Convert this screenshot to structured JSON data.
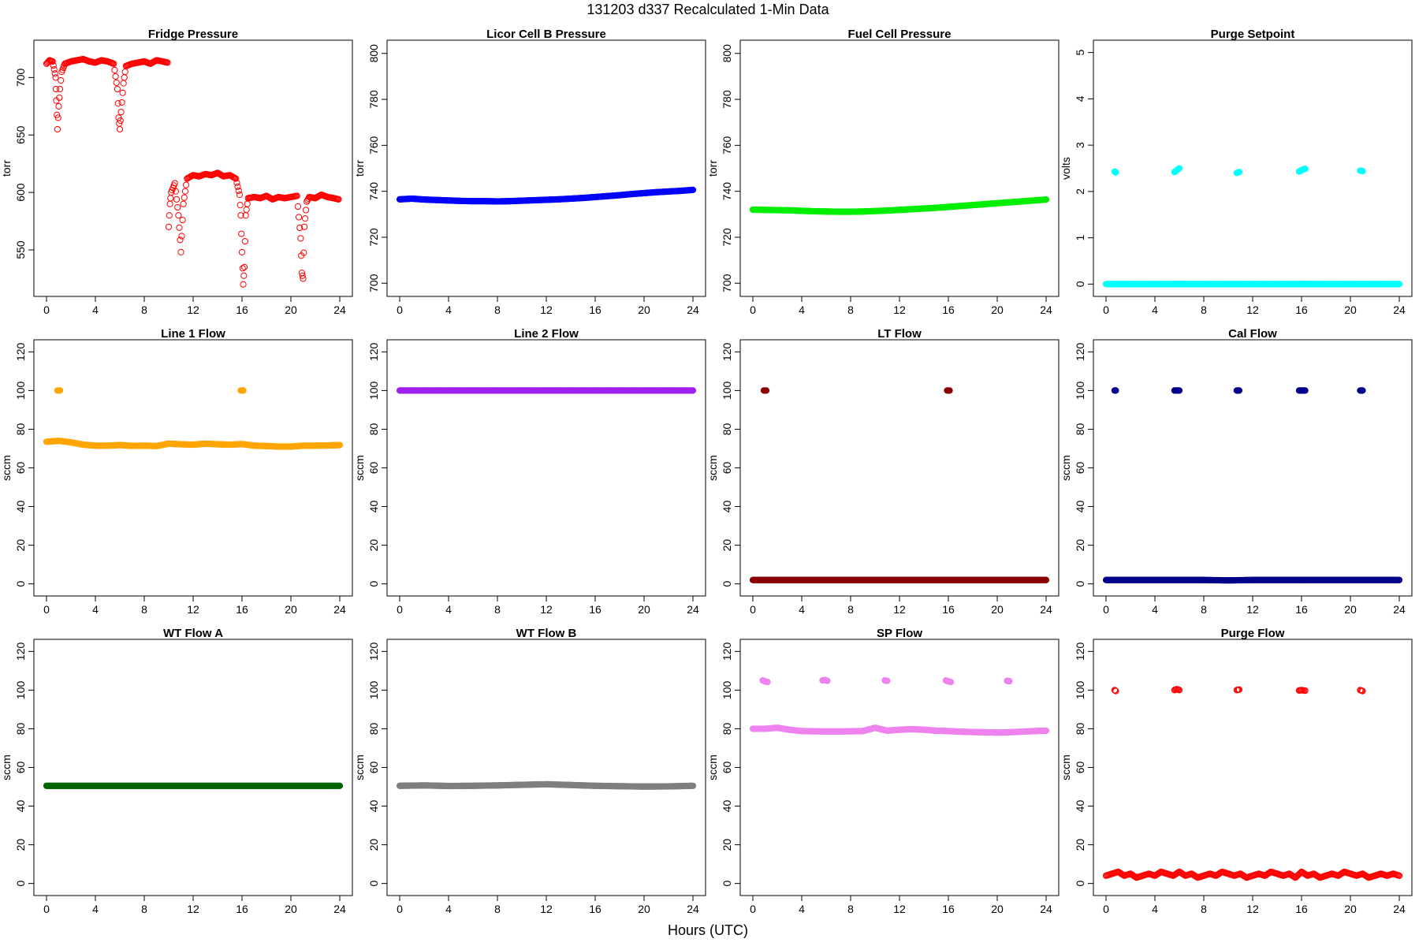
{
  "figure": {
    "title": "131203   d337   Recalculated 1-Min Data",
    "xlabel": "Hours (UTC)"
  },
  "chart_data": [
    {
      "type": "scatter",
      "title": "Fridge Pressure",
      "ylabel": "torr",
      "color": "#ff0000",
      "marker": "open",
      "xlim": [
        0,
        24
      ],
      "ylim": [
        515,
        727
      ],
      "xticks": [
        0,
        4,
        8,
        12,
        16,
        20,
        24
      ],
      "yticks": [
        550,
        600,
        650,
        700
      ],
      "series": [
        {
          "x": [
            0.0,
            0.25,
            0.5,
            0.75,
            0.8,
            0.9,
            1.0,
            1.1,
            1.25,
            1.5,
            2.0,
            2.5,
            3.0,
            3.5,
            4.0,
            4.5,
            5.0,
            5.5,
            5.8,
            5.9,
            6.0,
            6.1,
            6.3,
            6.5,
            7.0,
            7.5,
            8.0,
            8.5,
            9.0,
            9.5,
            9.9
          ],
          "y": [
            712,
            715,
            714,
            700,
            680,
            655,
            675,
            690,
            705,
            712,
            714,
            715,
            716,
            714,
            713,
            715,
            714,
            712,
            690,
            665,
            655,
            670,
            695,
            710,
            712,
            713,
            714,
            712,
            715,
            714,
            713
          ]
        },
        {
          "x": [
            10.0,
            10.1,
            10.2,
            10.5,
            10.8,
            11.0,
            11.2,
            11.5,
            12.0,
            12.5,
            13.0,
            13.5,
            14.0,
            14.5,
            15.0,
            15.5,
            15.8,
            15.9,
            16.0,
            16.1,
            16.2,
            16.3,
            16.5,
            17.0,
            17.5,
            18.0,
            18.5,
            19.0,
            19.5,
            20.0,
            20.5,
            20.8,
            20.9,
            21.0,
            21.1,
            21.3,
            21.5,
            22.0,
            22.5,
            23.0,
            23.5,
            23.9
          ],
          "y": [
            570,
            590,
            600,
            608,
            580,
            548,
            590,
            612,
            615,
            614,
            616,
            615,
            617,
            614,
            615,
            612,
            598,
            580,
            548,
            520,
            535,
            580,
            595,
            596,
            595,
            597,
            594,
            596,
            595,
            596,
            597,
            560,
            530,
            525,
            570,
            592,
            596,
            595,
            598,
            596,
            595,
            594
          ]
        }
      ]
    },
    {
      "type": "scatter",
      "title": "Licor Cell B Pressure",
      "ylabel": "torr",
      "color": "#0000ff",
      "marker": "filled",
      "xlim": [
        0,
        24
      ],
      "ylim": [
        697,
        803
      ],
      "xticks": [
        0,
        4,
        8,
        12,
        16,
        20,
        24
      ],
      "yticks": [
        700,
        720,
        740,
        760,
        780,
        800
      ],
      "series": [
        {
          "x": [
            0,
            1,
            2,
            3,
            4,
            5,
            6,
            7,
            8,
            9,
            10,
            11,
            12,
            13,
            14,
            15,
            16,
            17,
            18,
            19,
            20,
            21,
            22,
            23,
            24
          ],
          "y": [
            736.5,
            736.8,
            736.4,
            736.2,
            736.0,
            735.8,
            735.7,
            735.7,
            735.6,
            735.7,
            735.9,
            736.1,
            736.3,
            736.5,
            736.8,
            737.1,
            737.5,
            737.9,
            738.3,
            738.8,
            739.2,
            739.6,
            739.9,
            740.2,
            740.6
          ]
        }
      ]
    },
    {
      "type": "scatter",
      "title": "Fuel Cell Pressure",
      "ylabel": "torr",
      "color": "#00ee00",
      "marker": "filled",
      "xlim": [
        0,
        24
      ],
      "ylim": [
        697,
        803
      ],
      "xticks": [
        0,
        4,
        8,
        12,
        16,
        20,
        24
      ],
      "yticks": [
        700,
        720,
        740,
        760,
        780,
        800
      ],
      "series": [
        {
          "x": [
            0,
            1,
            2,
            3,
            4,
            5,
            6,
            7,
            8,
            9,
            10,
            11,
            12,
            13,
            14,
            15,
            16,
            17,
            18,
            19,
            20,
            21,
            22,
            23,
            24
          ],
          "y": [
            732.0,
            731.9,
            731.8,
            731.7,
            731.5,
            731.3,
            731.2,
            731.1,
            731.1,
            731.2,
            731.4,
            731.6,
            731.9,
            732.2,
            732.5,
            732.8,
            733.2,
            733.6,
            734.0,
            734.4,
            734.8,
            735.2,
            735.6,
            736.0,
            736.4
          ]
        }
      ]
    },
    {
      "type": "scatter",
      "title": "Purge Setpoint",
      "ylabel": "volts",
      "color": "#00ffff",
      "marker": "filled",
      "xlim": [
        0,
        24
      ],
      "ylim": [
        -0.13,
        5.13
      ],
      "xticks": [
        0,
        4,
        8,
        12,
        16,
        20,
        24
      ],
      "yticks": [
        0,
        1,
        2,
        3,
        4,
        5
      ],
      "series": [
        {
          "x": [
            0,
            1,
            2,
            3,
            4,
            5,
            6,
            7,
            8,
            9,
            10,
            11,
            12,
            13,
            14,
            15,
            16,
            17,
            18,
            19,
            20,
            21,
            22,
            23,
            24
          ],
          "y": [
            0,
            0,
            0,
            0,
            0,
            0,
            0,
            0,
            0,
            0,
            0,
            0,
            0,
            0,
            0,
            0,
            0,
            0,
            0,
            0,
            0,
            0,
            0,
            0,
            0
          ]
        },
        {
          "x": [
            0.7,
            0.8,
            5.6,
            5.8,
            6.0,
            10.7,
            10.9,
            15.8,
            16.0,
            16.3,
            20.8,
            21.0
          ],
          "y": [
            2.43,
            2.41,
            2.42,
            2.46,
            2.5,
            2.4,
            2.42,
            2.43,
            2.46,
            2.49,
            2.45,
            2.44
          ]
        }
      ]
    },
    {
      "type": "scatter",
      "title": "Line 1 Flow",
      "ylabel": "sccm",
      "color": "#ffa500",
      "marker": "filled",
      "xlim": [
        0,
        24
      ],
      "ylim": [
        -3,
        123
      ],
      "xticks": [
        0,
        4,
        8,
        12,
        16,
        20,
        24
      ],
      "yticks": [
        0,
        20,
        40,
        60,
        80,
        100,
        120
      ],
      "series": [
        {
          "x": [
            0,
            1,
            2,
            3,
            4,
            5,
            6,
            7,
            8,
            9,
            10,
            11,
            12,
            13,
            14,
            15,
            16,
            17,
            18,
            19,
            20,
            21,
            22,
            23,
            24
          ],
          "y": [
            73.5,
            74.0,
            73.2,
            72.0,
            71.5,
            71.5,
            71.8,
            71.4,
            71.5,
            71.3,
            72.5,
            72.2,
            72.0,
            72.5,
            72.2,
            72.0,
            72.3,
            71.5,
            71.3,
            71.0,
            71.0,
            71.5,
            71.5,
            71.6,
            71.8
          ]
        },
        {
          "x": [
            0.9,
            1.0,
            1.1,
            15.9,
            16.0,
            16.1
          ],
          "y": [
            100,
            100,
            100,
            100,
            100,
            100
          ]
        }
      ]
    },
    {
      "type": "scatter",
      "title": "Line 2 Flow",
      "ylabel": "sccm",
      "color": "#a020f0",
      "marker": "filled",
      "xlim": [
        0,
        24
      ],
      "ylim": [
        -3,
        123
      ],
      "xticks": [
        0,
        4,
        8,
        12,
        16,
        20,
        24
      ],
      "yticks": [
        0,
        20,
        40,
        60,
        80,
        100,
        120
      ],
      "series": [
        {
          "x": [
            0,
            2,
            4,
            6,
            8,
            10,
            12,
            14,
            16,
            18,
            20,
            22,
            24
          ],
          "y": [
            100,
            100,
            100,
            100,
            100,
            100,
            100,
            100,
            100,
            100,
            100,
            100,
            100
          ]
        }
      ]
    },
    {
      "type": "scatter",
      "title": "LT Flow",
      "ylabel": "sccm",
      "color": "#8b0000",
      "marker": "filled",
      "xlim": [
        0,
        24
      ],
      "ylim": [
        -3,
        123
      ],
      "xticks": [
        0,
        4,
        8,
        12,
        16,
        20,
        24
      ],
      "yticks": [
        0,
        20,
        40,
        60,
        80,
        100,
        120
      ],
      "series": [
        {
          "x": [
            0,
            2,
            4,
            6,
            8,
            10,
            12,
            14,
            16,
            18,
            20,
            22,
            24
          ],
          "y": [
            2,
            2,
            2,
            2,
            2,
            2,
            2,
            2,
            2,
            2,
            2,
            2,
            2
          ]
        },
        {
          "x": [
            0.9,
            1.0,
            1.1,
            15.9,
            16.0,
            16.1
          ],
          "y": [
            100,
            100,
            100,
            100,
            100,
            100
          ]
        }
      ]
    },
    {
      "type": "scatter",
      "title": "Cal Flow",
      "ylabel": "sccm",
      "color": "#00008b",
      "marker": "filled",
      "xlim": [
        0,
        24
      ],
      "ylim": [
        -3,
        123
      ],
      "xticks": [
        0,
        4,
        8,
        12,
        16,
        20,
        24
      ],
      "yticks": [
        0,
        20,
        40,
        60,
        80,
        100,
        120
      ],
      "series": [
        {
          "x": [
            0,
            2,
            4,
            6,
            8,
            10,
            12,
            14,
            16,
            18,
            20,
            22,
            24
          ],
          "y": [
            2,
            2,
            2,
            2,
            2,
            1.8,
            2,
            2,
            2,
            2,
            2,
            2,
            2
          ]
        },
        {
          "x": [
            0.7,
            0.8,
            5.6,
            5.8,
            6.0,
            10.7,
            10.9,
            15.8,
            16.0,
            16.3,
            20.8,
            21.0
          ],
          "y": [
            100,
            100,
            100,
            100,
            100,
            100,
            100,
            100,
            100,
            100,
            100,
            100
          ]
        }
      ]
    },
    {
      "type": "scatter",
      "title": "WT Flow A",
      "ylabel": "sccm",
      "color": "#006400",
      "marker": "filled",
      "xlim": [
        0,
        24
      ],
      "ylim": [
        -3,
        123
      ],
      "xticks": [
        0,
        4,
        8,
        12,
        16,
        20,
        24
      ],
      "yticks": [
        0,
        20,
        40,
        60,
        80,
        100,
        120
      ],
      "series": [
        {
          "x": [
            0,
            2,
            4,
            6,
            8,
            10,
            12,
            14,
            16,
            18,
            20,
            22,
            24
          ],
          "y": [
            50.5,
            50.5,
            50.5,
            50.5,
            50.5,
            50.5,
            50.5,
            50.5,
            50.5,
            50.5,
            50.5,
            50.5,
            50.5
          ]
        }
      ]
    },
    {
      "type": "scatter",
      "title": "WT Flow B",
      "ylabel": "sccm",
      "color": "#7f7f7f",
      "marker": "filled",
      "xlim": [
        0,
        24
      ],
      "ylim": [
        -3,
        123
      ],
      "xticks": [
        0,
        4,
        8,
        12,
        16,
        20,
        24
      ],
      "yticks": [
        0,
        20,
        40,
        60,
        80,
        100,
        120
      ],
      "series": [
        {
          "x": [
            0,
            2,
            4,
            6,
            8,
            10,
            12,
            14,
            16,
            18,
            20,
            22,
            24
          ],
          "y": [
            50.5,
            50.7,
            50.4,
            50.5,
            50.7,
            51.0,
            51.3,
            50.9,
            50.5,
            50.3,
            50.1,
            50.2,
            50.5
          ]
        }
      ]
    },
    {
      "type": "scatter",
      "title": "SP Flow",
      "ylabel": "sccm",
      "color": "#ee82ee",
      "marker": "filled",
      "xlim": [
        0,
        24
      ],
      "ylim": [
        -3,
        123
      ],
      "xticks": [
        0,
        4,
        8,
        12,
        16,
        20,
        24
      ],
      "yticks": [
        0,
        20,
        40,
        60,
        80,
        100,
        120
      ],
      "series": [
        {
          "x": [
            0,
            1,
            2,
            3,
            4,
            5,
            6,
            7,
            8,
            9,
            10,
            11,
            12,
            13,
            14,
            15,
            16,
            17,
            18,
            19,
            20,
            21,
            22,
            23,
            24
          ],
          "y": [
            80.0,
            80.0,
            80.5,
            79.5,
            78.8,
            78.7,
            78.6,
            78.6,
            78.7,
            78.8,
            80.5,
            79.0,
            79.5,
            79.8,
            79.5,
            79.0,
            78.8,
            78.5,
            78.3,
            78.2,
            78.0,
            78.2,
            78.5,
            78.8,
            79.0
          ]
        },
        {
          "x": [
            0.8,
            1.0,
            1.2,
            5.7,
            5.9,
            6.1,
            10.8,
            11.0,
            15.8,
            16.0,
            16.2,
            20.8,
            21.0
          ],
          "y": [
            105,
            104.5,
            104.2,
            105,
            105.2,
            104.8,
            105,
            104.8,
            105,
            104.5,
            104.2,
            104.8,
            104.6
          ]
        }
      ]
    },
    {
      "type": "scatter",
      "title": "Purge Flow",
      "ylabel": "sccm",
      "color": "#ff0000",
      "marker": "open",
      "xlim": [
        0,
        24
      ],
      "ylim": [
        -3,
        123
      ],
      "xticks": [
        0,
        4,
        8,
        12,
        16,
        20,
        24
      ],
      "yticks": [
        0,
        20,
        40,
        60,
        80,
        100,
        120
      ],
      "series": [
        {
          "x": [
            0,
            0.5,
            1,
            1.5,
            2,
            2.5,
            3,
            3.5,
            4,
            4.5,
            5,
            5.5,
            6,
            6.5,
            7,
            7.5,
            8,
            8.5,
            9,
            9.5,
            10,
            10.5,
            11,
            11.5,
            12,
            12.5,
            13,
            13.5,
            14,
            14.5,
            15,
            15.5,
            16,
            16.5,
            17,
            17.5,
            18,
            18.5,
            19,
            19.5,
            20,
            20.5,
            21,
            21.5,
            22,
            22.5,
            23,
            23.5,
            24
          ],
          "y": [
            4,
            5,
            6,
            4,
            5,
            3,
            4,
            5,
            4,
            6,
            5,
            4,
            6,
            4,
            5,
            3,
            4,
            5,
            4,
            6,
            5,
            4,
            5,
            3,
            4,
            5,
            4,
            6,
            5,
            4,
            5,
            3,
            6,
            4,
            5,
            3,
            4,
            5,
            4,
            6,
            5,
            4,
            5,
            3,
            4,
            5,
            4,
            5,
            4
          ]
        },
        {
          "x": [
            0.7,
            0.8,
            5.6,
            5.8,
            6.0,
            10.7,
            10.9,
            15.8,
            16.0,
            16.3,
            20.8,
            21.0
          ],
          "y": [
            100,
            99.5,
            100,
            100.5,
            100,
            100,
            100.3,
            99.8,
            100,
            99.7,
            100,
            99.5
          ]
        }
      ]
    }
  ]
}
